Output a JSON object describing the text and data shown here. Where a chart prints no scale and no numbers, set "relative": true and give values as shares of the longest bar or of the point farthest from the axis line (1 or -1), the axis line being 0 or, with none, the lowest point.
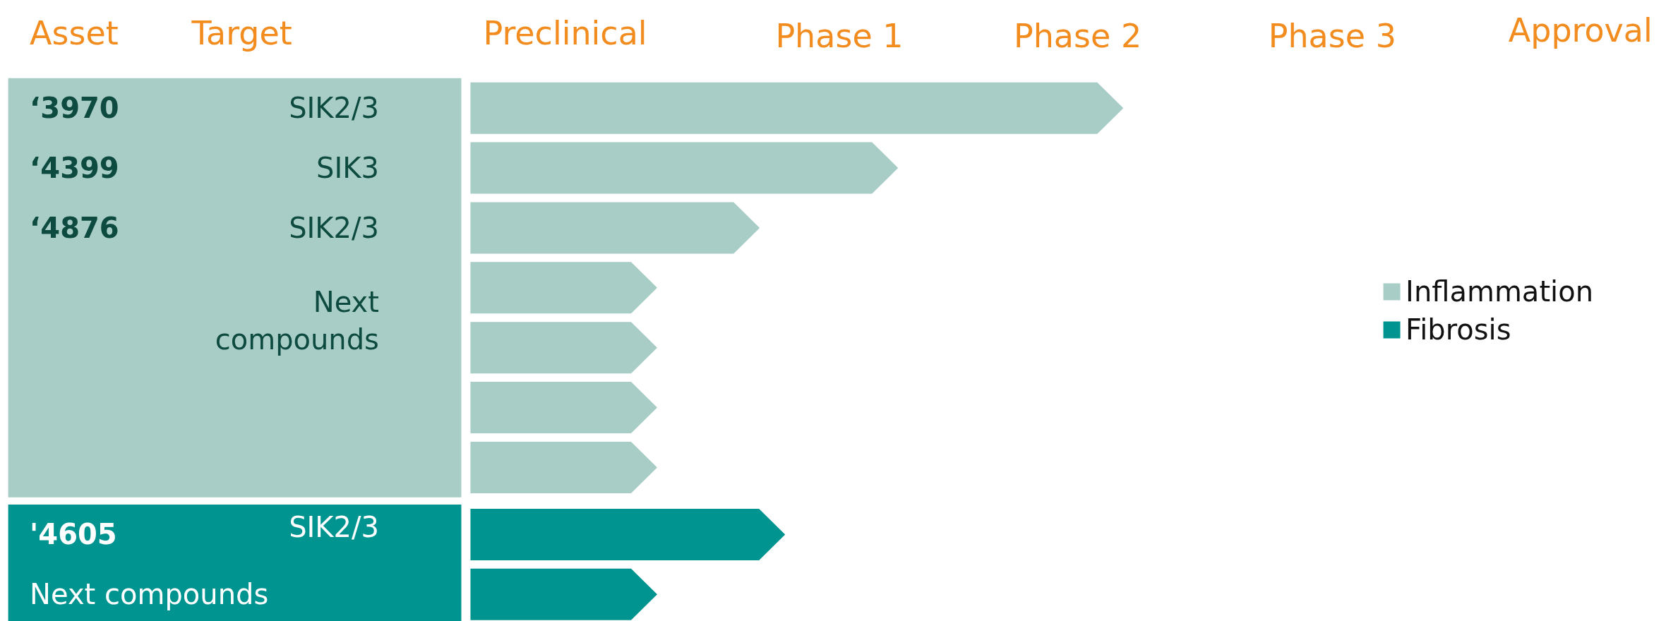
{
  "chart_data": {
    "type": "bar",
    "orientation": "horizontal",
    "relative": true,
    "categories": [
      "‘3970",
      "‘4399",
      "‘4876",
      null,
      null,
      null,
      null,
      "'4605",
      "Next compounds"
    ],
    "series": [
      {
        "name": "Inflammation",
        "color": "#a8cdc6",
        "values": [
          1,
          0.655,
          0.443,
          0.286,
          0.286,
          0.286,
          0.286,
          null,
          null
        ]
      },
      {
        "name": "Fibrosis",
        "color": "#009490",
        "values": [
          null,
          null,
          null,
          null,
          null,
          null,
          null,
          0.482,
          0.286
        ]
      }
    ],
    "annotations": [
      "Asset",
      "Target",
      "Preclinical",
      "Phase 1",
      "Phase 2",
      "Phase 3",
      "Approval",
      "SIK2/3",
      "SIK3",
      "SIK2/3",
      "Next compounds",
      "SIK2/3"
    ],
    "legend": "right"
  }
}
